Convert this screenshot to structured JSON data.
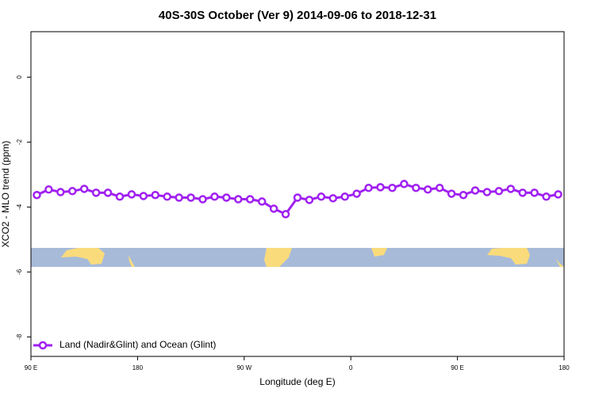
{
  "chart_data": {
    "type": "line",
    "title": "40S-30S October (Ver 9)   2014-09-06 to 2018-12-31",
    "x_label": "Longitude (deg E)",
    "y_label": "XCO2 - MLO trend (ppm)",
    "x": [
      95,
      105,
      115,
      125,
      135,
      145,
      155,
      165,
      175,
      185,
      195,
      205,
      215,
      225,
      235,
      245,
      255,
      265,
      275,
      285,
      295,
      305,
      315,
      325,
      335,
      345,
      355,
      365,
      375,
      385,
      395,
      405,
      415,
      425,
      435,
      445,
      455,
      465,
      475,
      485,
      495,
      505,
      515,
      525,
      535
    ],
    "series": [
      {
        "name": "Land (Nadir&Glint) and Ocean (Glint)",
        "color": "#a020f0",
        "values": [
          -3.63,
          -3.46,
          -3.54,
          -3.51,
          -3.44,
          -3.56,
          -3.56,
          -3.68,
          -3.61,
          -3.66,
          -3.63,
          -3.68,
          -3.71,
          -3.71,
          -3.76,
          -3.68,
          -3.71,
          -3.76,
          -3.76,
          -3.83,
          -4.05,
          -4.22,
          -3.71,
          -3.78,
          -3.68,
          -3.73,
          -3.68,
          -3.59,
          -3.41,
          -3.39,
          -3.41,
          -3.29,
          -3.41,
          -3.46,
          -3.41,
          -3.59,
          -3.63,
          -3.49,
          -3.54,
          -3.51,
          -3.44,
          -3.56,
          -3.56,
          -3.68,
          -3.61
        ]
      }
    ],
    "xlim": [
      90,
      540
    ],
    "xticks": [
      {
        "value": 90,
        "label": "90 E"
      },
      {
        "value": 180,
        "label": "180"
      },
      {
        "value": 270,
        "label": "90 W"
      },
      {
        "value": 360,
        "label": "0"
      },
      {
        "value": 450,
        "label": "90 E"
      },
      {
        "value": 540,
        "label": "180"
      }
    ],
    "ylim": [
      -8.6,
      1.4
    ],
    "yticks": [
      0,
      -2,
      -4,
      -6,
      -8
    ],
    "legend": "bottomleft"
  }
}
